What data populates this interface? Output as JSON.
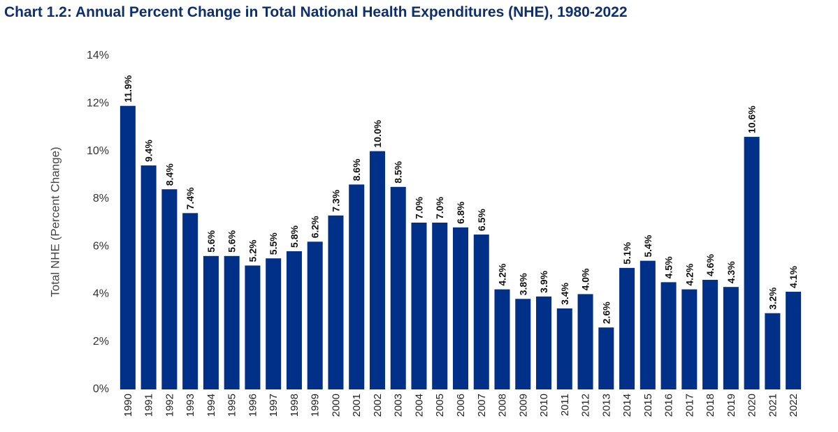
{
  "chart_data": {
    "type": "bar",
    "title": "Chart 1.2: Annual Percent Change in Total National Health Expenditures (NHE), 1980-2022",
    "ylabel": "Total NHE (Percent Change)",
    "xlabel": "",
    "ylim": [
      0,
      14
    ],
    "yticks": [
      "0%",
      "2%",
      "4%",
      "6%",
      "8%",
      "10%",
      "12%",
      "14%"
    ],
    "ytick_values": [
      0,
      2,
      4,
      6,
      8,
      10,
      12,
      14
    ],
    "grid": false,
    "legend": "none",
    "bar_color": "#003087",
    "categories": [
      "1990",
      "1991",
      "1992",
      "1993",
      "1994",
      "1995",
      "1996",
      "1997",
      "1998",
      "1999",
      "2000",
      "2001",
      "2002",
      "2003",
      "2004",
      "2005",
      "2006",
      "2007",
      "2008",
      "2009",
      "2010",
      "2011",
      "2012",
      "2013",
      "2014",
      "2015",
      "2016",
      "2017",
      "2018",
      "2019",
      "2020",
      "2021",
      "2022"
    ],
    "values": [
      11.9,
      9.4,
      8.4,
      7.4,
      5.6,
      5.6,
      5.2,
      5.5,
      5.8,
      6.2,
      7.3,
      8.6,
      10.0,
      8.5,
      7.0,
      7.0,
      6.8,
      6.5,
      4.2,
      3.8,
      3.9,
      3.4,
      4.0,
      2.6,
      5.1,
      5.4,
      4.5,
      4.2,
      4.6,
      4.3,
      10.6,
      3.2,
      4.1
    ],
    "data_labels": [
      "11.9%",
      "9.4%",
      "8.4%",
      "7.4%",
      "5.6%",
      "5.6%",
      "5.2%",
      "5.5%",
      "5.8%",
      "6.2%",
      "7.3%",
      "8.6%",
      "10.0%",
      "8.5%",
      "7.0%",
      "7.0%",
      "6.8%",
      "6.5%",
      "4.2%",
      "3.8%",
      "3.9%",
      "3.4%",
      "4.0%",
      "2.6%",
      "5.1%",
      "5.4%",
      "4.5%",
      "4.2%",
      "4.6%",
      "4.3%",
      "10.6%",
      "3.2%",
      "4.1%"
    ]
  }
}
